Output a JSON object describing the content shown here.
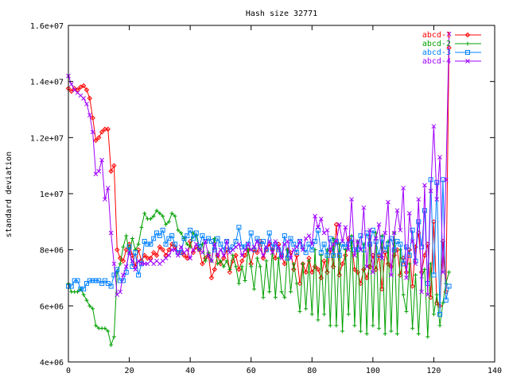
{
  "chart_data": {
    "type": "line",
    "title": "Hash size 32771",
    "xlabel": "",
    "ylabel": "standard deviation",
    "xlim": [
      0,
      140
    ],
    "ylim": [
      4000000,
      16000000
    ],
    "x_ticks": [
      0,
      20,
      40,
      60,
      80,
      100,
      120,
      140
    ],
    "x_tick_labels": [
      "0",
      "20",
      "40",
      "60",
      "80",
      "100",
      "120",
      "140"
    ],
    "y_ticks": [
      4000000,
      6000000,
      8000000,
      10000000,
      12000000,
      14000000,
      16000000
    ],
    "y_tick_labels": [
      "4e+06",
      "6e+06",
      "8e+06",
      "1e+07",
      "1.2e+07",
      "1.4e+07",
      "1.6e+07"
    ],
    "grid": false,
    "legend_position": "top-right",
    "series": [
      {
        "name": "abcd-1",
        "color": "#ff0000",
        "marker": "diamond",
        "x": [
          0,
          1,
          2,
          3,
          4,
          5,
          6,
          7,
          8,
          9,
          10,
          11,
          12,
          13,
          14,
          15,
          16,
          17,
          18,
          19,
          20,
          21,
          22,
          23,
          24,
          25,
          26,
          27,
          28,
          29,
          30,
          31,
          32,
          33,
          34,
          35,
          36,
          37,
          38,
          39,
          40,
          41,
          42,
          43,
          44,
          45,
          46,
          47,
          48,
          49,
          50,
          51,
          52,
          53,
          54,
          55,
          56,
          57,
          58,
          59,
          60,
          61,
          62,
          63,
          64,
          65,
          66,
          67,
          68,
          69,
          70,
          71,
          72,
          73,
          74,
          75,
          76,
          77,
          78,
          79,
          80,
          81,
          82,
          83,
          84,
          85,
          86,
          87,
          88,
          89,
          90,
          91,
          92,
          93,
          94,
          95,
          96,
          97,
          98,
          99,
          100,
          101,
          102,
          103,
          104,
          105,
          106,
          107,
          108,
          109,
          110,
          111,
          112,
          113,
          114,
          115,
          116,
          117,
          118,
          119,
          120,
          121,
          122,
          123,
          124,
          125
        ],
        "y": [
          13750000,
          13650000,
          13750000,
          13700000,
          13800000,
          13850000,
          13700000,
          13400000,
          12700000,
          11900000,
          12000000,
          12200000,
          12300000,
          12300000,
          10800000,
          11000000,
          8000000,
          7700000,
          7600000,
          8000000,
          8200000,
          7800000,
          7400000,
          8000000,
          7600000,
          7800000,
          7700000,
          7700000,
          7900000,
          7800000,
          8100000,
          8000000,
          7800000,
          8000000,
          8200000,
          8100000,
          7900000,
          7900000,
          7800000,
          7700000,
          8300000,
          7900000,
          8100000,
          8000000,
          7500000,
          7700000,
          7800000,
          7000000,
          7300000,
          7800000,
          7500000,
          7700000,
          8000000,
          7200000,
          7600000,
          7800000,
          7300000,
          7600000,
          7800000,
          8000000,
          7500000,
          8000000,
          7900000,
          8300000,
          7700000,
          8000000,
          8200000,
          8000000,
          7700000,
          8200000,
          7800000,
          7500000,
          8000000,
          7900000,
          7300000,
          7800000,
          6800000,
          7500000,
          7200000,
          7700000,
          7200000,
          7400000,
          7300000,
          7000000,
          7600000,
          7200000,
          8000000,
          7400000,
          8900000,
          7100000,
          7500000,
          7800000,
          8400000,
          8300000,
          7300000,
          7200000,
          6800000,
          7300000,
          7000000,
          7400000,
          7800000,
          7300000,
          7800000,
          6600000,
          7900000,
          7500000,
          7400000,
          7800000,
          8000000,
          7100000,
          7700000,
          7200000,
          8000000,
          6700000,
          8100000,
          8600000,
          7200000,
          7800000,
          8200000,
          6300000,
          9000000,
          6100000,
          6000000,
          8300000,
          6500000,
          15200000
        ]
      },
      {
        "name": "abcd-2",
        "color": "#00a000",
        "marker": "plus",
        "x": [
          0,
          1,
          2,
          3,
          4,
          5,
          6,
          7,
          8,
          9,
          10,
          11,
          12,
          13,
          14,
          15,
          16,
          17,
          18,
          19,
          20,
          21,
          22,
          23,
          24,
          25,
          26,
          27,
          28,
          29,
          30,
          31,
          32,
          33,
          34,
          35,
          36,
          37,
          38,
          39,
          40,
          41,
          42,
          43,
          44,
          45,
          46,
          47,
          48,
          49,
          50,
          51,
          52,
          53,
          54,
          55,
          56,
          57,
          58,
          59,
          60,
          61,
          62,
          63,
          64,
          65,
          66,
          67,
          68,
          69,
          70,
          71,
          72,
          73,
          74,
          75,
          76,
          77,
          78,
          79,
          80,
          81,
          82,
          83,
          84,
          85,
          86,
          87,
          88,
          89,
          90,
          91,
          92,
          93,
          94,
          95,
          96,
          97,
          98,
          99,
          100,
          101,
          102,
          103,
          104,
          105,
          106,
          107,
          108,
          109,
          110,
          111,
          112,
          113,
          114,
          115,
          116,
          117,
          118,
          119,
          120,
          121,
          122,
          123,
          124,
          125
        ],
        "y": [
          6800000,
          6500000,
          6500000,
          6500000,
          6600000,
          6400000,
          6200000,
          6000000,
          5900000,
          5300000,
          5200000,
          5200000,
          5200000,
          5100000,
          4600000,
          4900000,
          7200000,
          7500000,
          8100000,
          8500000,
          7900000,
          8400000,
          8000000,
          8200000,
          8800000,
          9300000,
          9100000,
          9100000,
          9200000,
          9400000,
          9300000,
          9200000,
          8900000,
          9000000,
          9300000,
          9200000,
          8700000,
          8600000,
          8400000,
          8200000,
          8100000,
          8600000,
          8500000,
          8000000,
          8200000,
          7600000,
          7900000,
          7600000,
          8400000,
          7500000,
          7600000,
          7400000,
          7600000,
          7300000,
          7800000,
          7400000,
          6800000,
          7400000,
          6900000,
          8000000,
          7400000,
          6600000,
          7700000,
          7400000,
          6300000,
          7600000,
          6500000,
          8000000,
          6300000,
          7700000,
          6500000,
          6300000,
          8000000,
          6500000,
          7500000,
          6800000,
          5800000,
          7500000,
          5900000,
          7600000,
          5700000,
          8000000,
          5500000,
          7800000,
          5700000,
          8000000,
          5300000,
          8400000,
          5300000,
          8200000,
          5100000,
          8000000,
          5700000,
          8500000,
          5300000,
          8300000,
          5100000,
          8200000,
          5000000,
          8500000,
          5300000,
          8600000,
          5200000,
          8500000,
          5000000,
          8300000,
          5100000,
          8600000,
          5000000,
          8000000,
          6400000,
          5800000,
          7500000,
          5200000,
          7100000,
          5000000,
          7000000,
          7300000,
          4900000,
          7500000,
          5700000,
          6400000,
          5300000,
          6100000,
          6800000,
          7200000
        ]
      },
      {
        "name": "abcd-3",
        "color": "#0080ff",
        "marker": "square",
        "x": [
          0,
          1,
          2,
          3,
          4,
          5,
          6,
          7,
          8,
          9,
          10,
          11,
          12,
          13,
          14,
          15,
          16,
          17,
          18,
          19,
          20,
          21,
          22,
          23,
          24,
          25,
          26,
          27,
          28,
          29,
          30,
          31,
          32,
          33,
          34,
          35,
          36,
          37,
          38,
          39,
          40,
          41,
          42,
          43,
          44,
          45,
          46,
          47,
          48,
          49,
          50,
          51,
          52,
          53,
          54,
          55,
          56,
          57,
          58,
          59,
          60,
          61,
          62,
          63,
          64,
          65,
          66,
          67,
          68,
          69,
          70,
          71,
          72,
          73,
          74,
          75,
          76,
          77,
          78,
          79,
          80,
          81,
          82,
          83,
          84,
          85,
          86,
          87,
          88,
          89,
          90,
          91,
          92,
          93,
          94,
          95,
          96,
          97,
          98,
          99,
          100,
          101,
          102,
          103,
          104,
          105,
          106,
          107,
          108,
          109,
          110,
          111,
          112,
          113,
          114,
          115,
          116,
          117,
          118,
          119,
          120,
          121,
          122,
          123,
          124,
          125
        ],
        "y": [
          6700000,
          6700000,
          6900000,
          6900000,
          6600000,
          6600000,
          6800000,
          6900000,
          6900000,
          6900000,
          6900000,
          6800000,
          6900000,
          6800000,
          6700000,
          7100000,
          7300000,
          6900000,
          6900000,
          7200000,
          8100000,
          7400000,
          7900000,
          7100000,
          7500000,
          8300000,
          8200000,
          8200000,
          8400000,
          8600000,
          8500000,
          8700000,
          8200000,
          8400000,
          8500000,
          8200000,
          7900000,
          7900000,
          8400000,
          8500000,
          8700000,
          8400000,
          8600000,
          8100000,
          8500000,
          8300000,
          8400000,
          8300000,
          8000000,
          8400000,
          8200000,
          8000000,
          8300000,
          8000000,
          8100000,
          8300000,
          8800000,
          8100000,
          8100000,
          8200000,
          8600000,
          8000000,
          8400000,
          8200000,
          8300000,
          8000000,
          8600000,
          8100000,
          8200000,
          8000000,
          7800000,
          8500000,
          7700000,
          8400000,
          8200000,
          7900000,
          8300000,
          8100000,
          7900000,
          8200000,
          8000000,
          8300000,
          8700000,
          7900000,
          8200000,
          7800000,
          8400000,
          7800000,
          8300000,
          7800000,
          8200000,
          8100000,
          8200000,
          8400000,
          8000000,
          8000000,
          8500000,
          8000000,
          8600000,
          8200000,
          8700000,
          8300000,
          7800000,
          8400000,
          8000000,
          8200000,
          8400000,
          8000000,
          8300000,
          8200000,
          7500000,
          8100000,
          7800000,
          8700000,
          7600000,
          9000000,
          8100000,
          9400000,
          6800000,
          10500000,
          7100000,
          10400000,
          5700000,
          10500000,
          6200000,
          6700000
        ]
      },
      {
        "name": "abcd-4",
        "color": "#a000ff",
        "marker": "cross",
        "x": [
          0,
          1,
          2,
          3,
          4,
          5,
          6,
          7,
          8,
          9,
          10,
          11,
          12,
          13,
          14,
          15,
          16,
          17,
          18,
          19,
          20,
          21,
          22,
          23,
          24,
          25,
          26,
          27,
          28,
          29,
          30,
          31,
          32,
          33,
          34,
          35,
          36,
          37,
          38,
          39,
          40,
          41,
          42,
          43,
          44,
          45,
          46,
          47,
          48,
          49,
          50,
          51,
          52,
          53,
          54,
          55,
          56,
          57,
          58,
          59,
          60,
          61,
          62,
          63,
          64,
          65,
          66,
          67,
          68,
          69,
          70,
          71,
          72,
          73,
          74,
          75,
          76,
          77,
          78,
          79,
          80,
          81,
          82,
          83,
          84,
          85,
          86,
          87,
          88,
          89,
          90,
          91,
          92,
          93,
          94,
          95,
          96,
          97,
          98,
          99,
          100,
          101,
          102,
          103,
          104,
          105,
          106,
          107,
          108,
          109,
          110,
          111,
          112,
          113,
          114,
          115,
          116,
          117,
          118,
          119,
          120,
          121,
          122,
          123,
          124,
          125
        ],
        "y": [
          14200000,
          13900000,
          13700000,
          13600000,
          13500000,
          13400000,
          13200000,
          12800000,
          12200000,
          10700000,
          10800000,
          11200000,
          9800000,
          10200000,
          8600000,
          7500000,
          6400000,
          6500000,
          7100000,
          7400000,
          7900000,
          7600000,
          7300000,
          7600000,
          7500000,
          7500000,
          7500000,
          7600000,
          7500000,
          7600000,
          7500000,
          7600000,
          7700000,
          7800000,
          8000000,
          8000000,
          7800000,
          8100000,
          7900000,
          8000000,
          7700000,
          8000000,
          8200000,
          8000000,
          7900000,
          8300000,
          7800000,
          7600000,
          8200000,
          7800000,
          8000000,
          7800000,
          8300000,
          7900000,
          8000000,
          8100000,
          8200000,
          7800000,
          8000000,
          8200000,
          8000000,
          8100000,
          8300000,
          8000000,
          7800000,
          8100000,
          8300000,
          7900000,
          8300000,
          8100000,
          7700000,
          8200000,
          8300000,
          7700000,
          8000000,
          8100000,
          8300000,
          8000000,
          8400000,
          8500000,
          8200000,
          9200000,
          8800000,
          9100000,
          8600000,
          8700000,
          8000000,
          8200000,
          8300000,
          8900000,
          8300000,
          8800000,
          8000000,
          9800000,
          7800000,
          8300000,
          8000000,
          9500000,
          7400000,
          8700000,
          7200000,
          8400000,
          8900000,
          7700000,
          8600000,
          9700000,
          7100000,
          8600000,
          9400000,
          8700000,
          10200000,
          7000000,
          9300000,
          8300000,
          7500000,
          9800000,
          6500000,
          10300000,
          6400000,
          10100000,
          12400000,
          9800000,
          11300000,
          7200000,
          10500000,
          15700000
        ]
      }
    ]
  }
}
